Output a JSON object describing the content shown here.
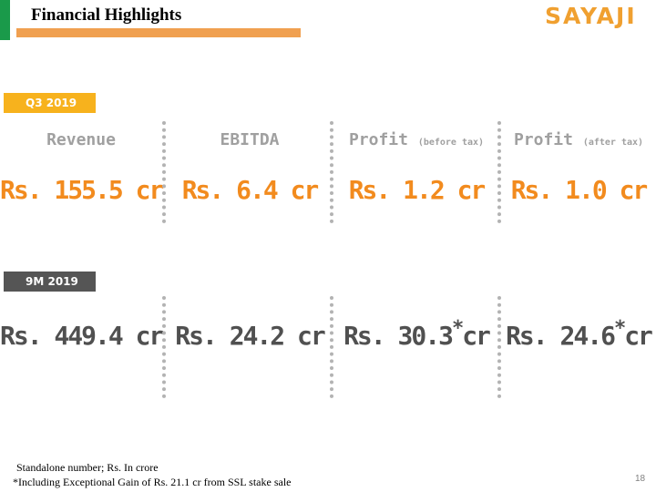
{
  "slide": {
    "title": "Financial Highlights",
    "logo_text": "SAYAJI",
    "page_number": "18"
  },
  "periods": [
    {
      "label": "Q3 2019"
    },
    {
      "label": "9M 2019"
    }
  ],
  "metrics": [
    {
      "name": "Revenue",
      "qualifier": ""
    },
    {
      "name": "EBITDA",
      "qualifier": ""
    },
    {
      "name": "Profit",
      "qualifier": "(before tax)"
    },
    {
      "name": "Profit",
      "qualifier": "(after tax)"
    }
  ],
  "q3_values": [
    {
      "main": "Rs. 155.5 cr",
      "asterisk": "",
      "unit": ""
    },
    {
      "main": "Rs. 6.4 cr",
      "asterisk": "",
      "unit": ""
    },
    {
      "main": "Rs. 1.2 cr",
      "asterisk": "",
      "unit": ""
    },
    {
      "main": "Rs. 1.0 cr",
      "asterisk": "",
      "unit": ""
    }
  ],
  "nm_values": [
    {
      "main": "Rs. 449.4 cr",
      "asterisk": "",
      "unit": ""
    },
    {
      "main": "Rs. 24.2 cr",
      "asterisk": "",
      "unit": ""
    },
    {
      "main": "Rs. 30.3",
      "asterisk": "*",
      "unit": "cr"
    },
    {
      "main": "Rs. 24.6",
      "asterisk": "*",
      "unit": "cr"
    }
  ],
  "footnotes": {
    "line1": "Standalone number; Rs. In crore",
    "line2": "*Including Exceptional Gain of Rs. 21.1 cr from SSL stake sale"
  },
  "colors": {
    "accent_green": "#1a9a4a",
    "orange": "#f28b1e",
    "q3_badge": "#f7b21d",
    "nm_badge": "#555555",
    "logo": "#f0a030"
  }
}
